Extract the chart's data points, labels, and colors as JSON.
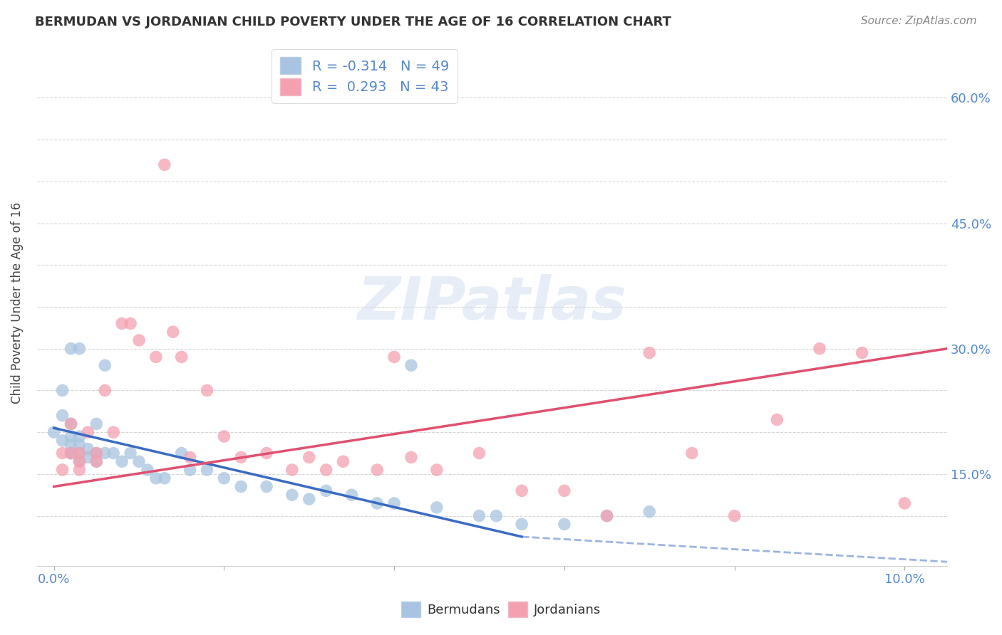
{
  "title": "BERMUDAN VS JORDANIAN CHILD POVERTY UNDER THE AGE OF 16 CORRELATION CHART",
  "source": "Source: ZipAtlas.com",
  "ylabel": "Child Poverty Under the Age of 16",
  "bermuda_R": -0.314,
  "bermuda_N": 49,
  "jordan_R": 0.293,
  "jordan_N": 43,
  "bermuda_color": "#a8c4e0",
  "jordan_color": "#f4a0b0",
  "bermuda_line_color": "#3a6bc4",
  "jordan_line_color": "#e05070",
  "xlim": [
    -0.002,
    0.105
  ],
  "ylim": [
    0.04,
    0.67
  ],
  "bermuda_x": [
    0.0,
    0.001,
    0.001,
    0.001,
    0.002,
    0.002,
    0.002,
    0.002,
    0.002,
    0.003,
    0.003,
    0.003,
    0.003,
    0.004,
    0.004,
    0.005,
    0.005,
    0.005,
    0.006,
    0.006,
    0.007,
    0.008,
    0.009,
    0.01,
    0.011,
    0.012,
    0.013,
    0.015,
    0.016,
    0.018,
    0.02,
    0.022,
    0.025,
    0.028,
    0.03,
    0.032,
    0.035,
    0.038,
    0.04,
    0.042,
    0.045,
    0.05,
    0.052,
    0.055,
    0.06,
    0.065,
    0.07,
    0.002,
    0.003
  ],
  "bermuda_y": [
    0.2,
    0.22,
    0.25,
    0.19,
    0.21,
    0.195,
    0.185,
    0.175,
    0.175,
    0.195,
    0.185,
    0.175,
    0.165,
    0.18,
    0.17,
    0.21,
    0.175,
    0.165,
    0.28,
    0.175,
    0.175,
    0.165,
    0.175,
    0.165,
    0.155,
    0.145,
    0.145,
    0.175,
    0.155,
    0.155,
    0.145,
    0.135,
    0.135,
    0.125,
    0.12,
    0.13,
    0.125,
    0.115,
    0.115,
    0.28,
    0.11,
    0.1,
    0.1,
    0.09,
    0.09,
    0.1,
    0.105,
    0.3,
    0.3
  ],
  "jordan_x": [
    0.001,
    0.001,
    0.002,
    0.002,
    0.003,
    0.003,
    0.003,
    0.004,
    0.005,
    0.005,
    0.006,
    0.007,
    0.008,
    0.009,
    0.01,
    0.012,
    0.013,
    0.014,
    0.015,
    0.016,
    0.018,
    0.02,
    0.022,
    0.025,
    0.028,
    0.03,
    0.032,
    0.034,
    0.038,
    0.04,
    0.042,
    0.05,
    0.055,
    0.06,
    0.065,
    0.07,
    0.075,
    0.08,
    0.085,
    0.09,
    0.095,
    0.1,
    0.045
  ],
  "jordan_y": [
    0.175,
    0.155,
    0.21,
    0.175,
    0.175,
    0.165,
    0.155,
    0.2,
    0.175,
    0.165,
    0.25,
    0.2,
    0.33,
    0.33,
    0.31,
    0.29,
    0.52,
    0.32,
    0.29,
    0.17,
    0.25,
    0.195,
    0.17,
    0.175,
    0.155,
    0.17,
    0.155,
    0.165,
    0.155,
    0.29,
    0.17,
    0.175,
    0.13,
    0.13,
    0.1,
    0.295,
    0.175,
    0.1,
    0.215,
    0.3,
    0.295,
    0.115,
    0.155
  ]
}
